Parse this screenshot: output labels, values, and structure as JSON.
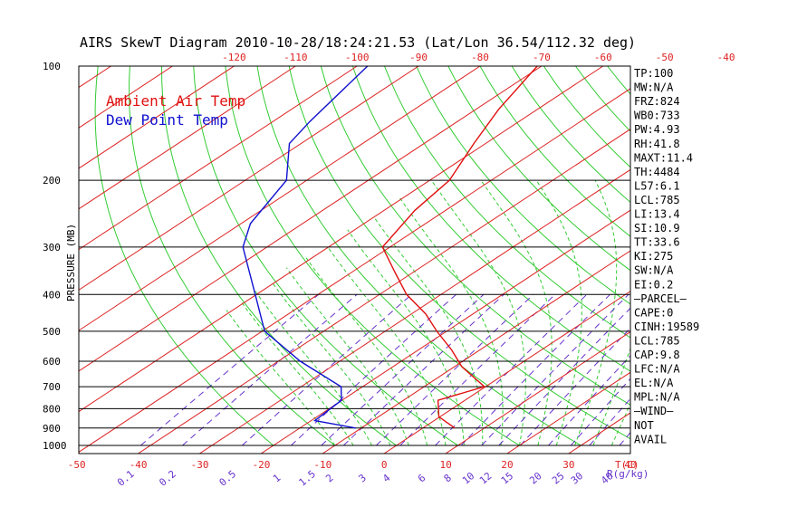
{
  "chart_data": {
    "type": "skewt",
    "title": "AIRS SkewT Diagram 2010-10-28/18:24:21.53 (Lat/Lon 36.54/112.32 deg)",
    "ylabel": "PRESSURE (MB)",
    "xlabel_bottom_unit": "T(C)",
    "mixing_unit": "R(g/kg)",
    "pressure_ticks": [
      100,
      200,
      300,
      400,
      500,
      600,
      700,
      800,
      900,
      1000
    ],
    "top_temp_ticks": [
      -120,
      -110,
      -100,
      -90,
      -80,
      -70,
      -60,
      -50,
      -40
    ],
    "bottom_temp_ticks": [
      -50,
      -40,
      -30,
      -20,
      -10,
      0,
      10,
      20,
      30,
      40
    ],
    "mixing_ratio_labels": [
      "0.1",
      "0.2",
      "0.5",
      "1",
      "1.5",
      "2",
      "3",
      "4",
      "6",
      "8",
      "10",
      "12",
      "15",
      "20",
      "25",
      "30",
      "40"
    ],
    "legend": [
      {
        "label": "Ambient Air Temp",
        "color": "#e01010"
      },
      {
        "label": "Dew Point Temp",
        "color": "#1010d0"
      }
    ],
    "series": [
      {
        "name": "Ambient Air Temp",
        "color": "#e01010",
        "points": [
          [
            100,
            -70.7
          ],
          [
            130,
            -66.3
          ],
          [
            160,
            -61.9
          ],
          [
            200,
            -56.8
          ],
          [
            240,
            -55.0
          ],
          [
            300,
            -51.2
          ],
          [
            350,
            -42.9
          ],
          [
            400,
            -35.6
          ],
          [
            450,
            -27.7
          ],
          [
            500,
            -21.6
          ],
          [
            560,
            -14.6
          ],
          [
            620,
            -8.8
          ],
          [
            700,
            -0.2
          ],
          [
            760,
            -4.4
          ],
          [
            840,
            -0.2
          ],
          [
            900,
            5.2
          ]
        ]
      },
      {
        "name": "Dew Point Temp",
        "color": "#1010d0",
        "points": [
          [
            100,
            -98.3
          ],
          [
            140,
            -94.0
          ],
          [
            160,
            -91.9
          ],
          [
            200,
            -83.3
          ],
          [
            260,
            -78.5
          ],
          [
            300,
            -73.9
          ],
          [
            400,
            -60.2
          ],
          [
            500,
            -49.6
          ],
          [
            600,
            -36.4
          ],
          [
            700,
            -23.5
          ],
          [
            760,
            -20.1
          ],
          [
            860,
            -19.4
          ],
          [
            900,
            -10.9
          ]
        ]
      }
    ],
    "indices": [
      "TP:100",
      "MW:N/A",
      "FRZ:824",
      "WB0:733",
      "PW:4.93",
      "RH:41.8",
      "MAXT:11.4",
      "TH:4484",
      "L57:6.1",
      "LCL:785",
      "LI:13.4",
      "SI:10.9",
      "TT:33.6",
      "KI:275",
      "SW:N/A",
      "EI:0.2",
      "—PARCEL—",
      "CAPE:0",
      "CINH:19589",
      "LCL:785",
      "CAP:9.8",
      "LFC:N/A",
      "EL:N/A",
      "MPL:N/A",
      "—WIND—",
      "NOT",
      "AVAIL"
    ]
  }
}
